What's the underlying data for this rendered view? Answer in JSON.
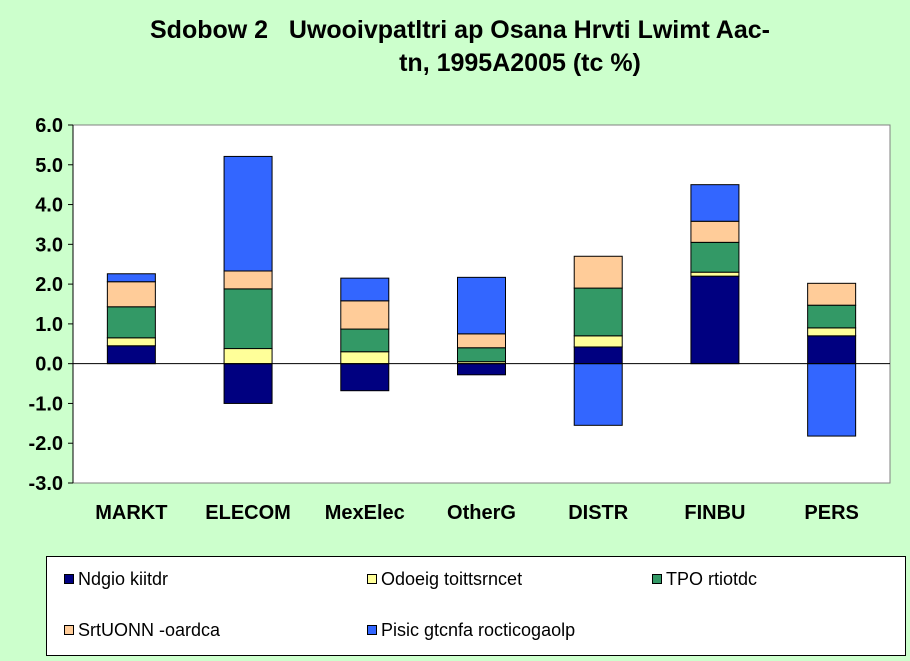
{
  "title": {
    "line1": "Sdobow 2   Uwooivpatltri ap Osana Hrvti Lwimt Aac-",
    "line2": "tn, 1995A2005 (tc %)"
  },
  "chart_data": {
    "type": "bar",
    "stacked": true,
    "categories": [
      "MARKT",
      "ELECOM",
      "MexElec",
      "OtherG",
      "DISTR",
      "FINBU",
      "PERS"
    ],
    "ylim": [
      -3.0,
      6.0
    ],
    "y_ticks": [
      "6.0",
      "5.0",
      "4.0",
      "3.0",
      "2.0",
      "1.0",
      "0.0",
      "-1.0",
      "-2.0",
      "-3.0"
    ],
    "xlabel": "",
    "ylabel": "",
    "grid": false,
    "legend_position": "bottom",
    "series": [
      {
        "name": "Ndgio kiitdr",
        "color": "#000080",
        "values": [
          0.45,
          -1.0,
          -0.68,
          -0.28,
          0.42,
          2.2,
          0.7
        ]
      },
      {
        "name": "Odoeig toittsrncet",
        "color": "#ffff99",
        "values": [
          0.2,
          0.38,
          0.3,
          0.05,
          0.28,
          0.1,
          0.2
        ]
      },
      {
        "name": "TPO rtiotdc",
        "color": "#339966",
        "values": [
          0.78,
          1.5,
          0.57,
          0.35,
          1.2,
          0.75,
          0.57
        ]
      },
      {
        "name": "SrtUONN -oardca",
        "color": "#ffcc99",
        "values": [
          0.63,
          0.45,
          0.71,
          0.35,
          0.8,
          0.53,
          0.55
        ]
      },
      {
        "name": "Pisic gtcnfa rocticogaolp",
        "color": "#3366ff",
        "values": [
          0.2,
          2.88,
          0.57,
          1.42,
          -1.55,
          0.92,
          -1.82
        ]
      }
    ]
  }
}
